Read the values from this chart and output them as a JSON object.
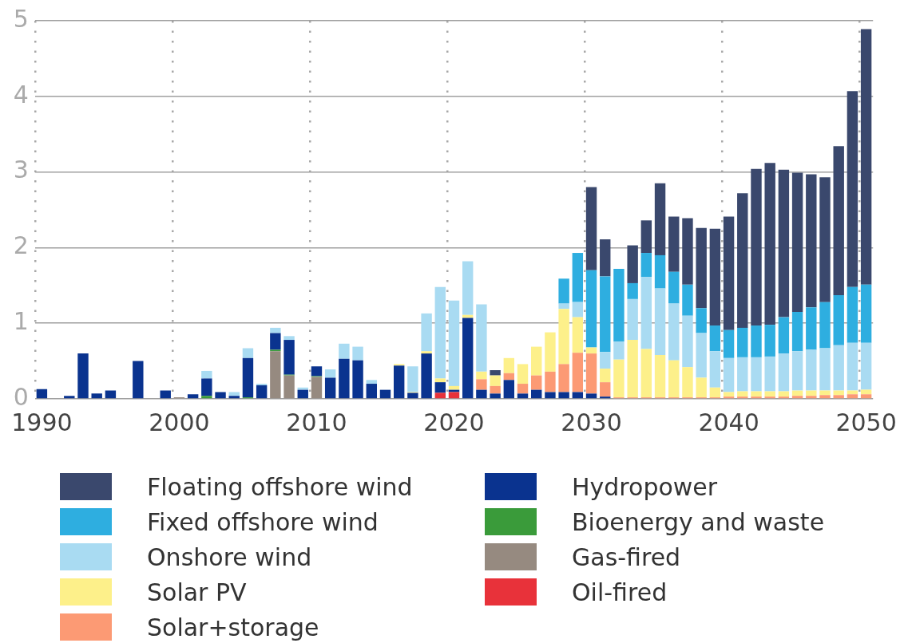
{
  "chart_data": {
    "type": "bar",
    "stacked": true,
    "grid": true,
    "legend": "bottom",
    "ylim": [
      0,
      5
    ],
    "yticks": [
      0,
      1,
      2,
      3,
      4,
      5
    ],
    "categories": [
      "1990",
      null,
      null,
      null,
      null,
      null,
      null,
      null,
      null,
      null,
      "2000",
      null,
      null,
      null,
      null,
      null,
      null,
      null,
      null,
      null,
      "2010",
      null,
      null,
      null,
      null,
      null,
      null,
      null,
      null,
      null,
      "2020",
      null,
      null,
      null,
      null,
      null,
      null,
      null,
      null,
      null,
      "2030",
      null,
      null,
      null,
      null,
      null,
      null,
      null,
      null,
      null,
      "2040",
      null,
      null,
      null,
      null,
      null,
      null,
      null,
      null,
      null,
      "2050"
    ],
    "series": [
      {
        "name": "Oil-fired",
        "color": "#e8323a",
        "values": [
          null,
          null,
          null,
          null,
          null,
          null,
          null,
          null,
          null,
          null,
          null,
          null,
          null,
          null,
          null,
          null,
          null,
          null,
          null,
          null,
          null,
          null,
          null,
          null,
          null,
          null,
          null,
          null,
          null,
          0.08,
          0.09,
          null,
          null,
          null,
          null,
          null,
          null,
          null,
          null,
          null,
          null,
          null,
          null,
          null,
          null,
          null,
          null,
          null,
          null,
          null,
          null,
          null,
          null,
          null,
          null,
          null,
          null,
          null,
          null,
          null,
          null
        ]
      },
      {
        "name": "Gas-fired",
        "color": "#968a80",
        "values": [
          null,
          null,
          null,
          null,
          null,
          null,
          null,
          null,
          null,
          null,
          0.02,
          null,
          null,
          null,
          null,
          null,
          null,
          0.63,
          0.31,
          null,
          0.29,
          null,
          null,
          null,
          null,
          null,
          null,
          null,
          null,
          null,
          null,
          null,
          null,
          null,
          null,
          null,
          null,
          null,
          null,
          null,
          null,
          null,
          null,
          null,
          null,
          null,
          null,
          null,
          null,
          null,
          null,
          null,
          null,
          null,
          null,
          null,
          null,
          null,
          null,
          null,
          null
        ]
      },
      {
        "name": "Bioenergy and waste",
        "color": "#3a9b3a",
        "values": [
          null,
          null,
          null,
          null,
          null,
          null,
          null,
          null,
          null,
          null,
          null,
          null,
          0.04,
          null,
          null,
          0.02,
          null,
          0.02,
          0.01,
          null,
          0.01,
          null,
          null,
          null,
          null,
          null,
          null,
          null,
          null,
          null,
          null,
          null,
          null,
          null,
          null,
          null,
          null,
          null,
          null,
          null,
          null,
          null,
          null,
          null,
          null,
          null,
          null,
          null,
          null,
          null,
          null,
          null,
          null,
          null,
          null,
          null,
          null,
          null,
          null,
          null,
          null
        ]
      },
      {
        "name": "Hydropower",
        "color": "#0a338f",
        "values": [
          0.13,
          null,
          0.04,
          0.6,
          0.07,
          0.11,
          null,
          0.5,
          null,
          0.11,
          null,
          0.06,
          0.23,
          0.09,
          0.04,
          0.52,
          0.18,
          0.22,
          0.46,
          0.12,
          0.13,
          0.28,
          0.53,
          0.51,
          0.2,
          0.12,
          0.44,
          0.08,
          0.6,
          0.14,
          0.03,
          1.07,
          0.12,
          0.07,
          0.25,
          0.07,
          0.12,
          0.09,
          0.09,
          0.09,
          0.07,
          0.03,
          null,
          null,
          null,
          null,
          null,
          null,
          null,
          null,
          null,
          null,
          null,
          null,
          null,
          null,
          null,
          null,
          null,
          null,
          null
        ]
      },
      {
        "name": "Solar+storage",
        "color": "#fc9a74",
        "values": [
          null,
          null,
          null,
          null,
          null,
          null,
          null,
          null,
          null,
          null,
          null,
          null,
          null,
          null,
          null,
          null,
          null,
          null,
          null,
          null,
          null,
          null,
          null,
          null,
          null,
          null,
          null,
          null,
          null,
          null,
          null,
          null,
          0.14,
          0.1,
          0.09,
          0.13,
          0.19,
          0.27,
          0.37,
          0.52,
          0.53,
          0.19,
          0.02,
          0.02,
          0.02,
          0.02,
          0.02,
          0.02,
          0.02,
          0.02,
          0.03,
          0.03,
          0.03,
          0.03,
          0.03,
          0.04,
          0.04,
          0.05,
          0.05,
          0.06,
          0.06
        ]
      },
      {
        "name": "Solar PV",
        "color": "#fdf08a",
        "values": [
          null,
          null,
          null,
          null,
          null,
          null,
          null,
          null,
          null,
          null,
          null,
          null,
          null,
          null,
          null,
          null,
          null,
          null,
          null,
          null,
          null,
          null,
          null,
          null,
          null,
          null,
          0.02,
          0.01,
          0.03,
          0.05,
          0.05,
          0.04,
          0.1,
          0.14,
          0.2,
          0.26,
          0.38,
          0.52,
          0.73,
          0.47,
          0.08,
          0.18,
          0.5,
          0.76,
          0.64,
          0.56,
          0.49,
          0.4,
          0.26,
          0.13,
          0.06,
          0.07,
          0.07,
          0.07,
          0.07,
          0.07,
          0.07,
          0.06,
          0.06,
          0.05,
          0.06
        ]
      },
      {
        "name": "Onshore wind",
        "color": "#a9dbf2",
        "values": [
          null,
          null,
          null,
          null,
          null,
          null,
          null,
          null,
          null,
          null,
          null,
          null,
          0.1,
          null,
          0.05,
          0.13,
          0.02,
          0.07,
          0.05,
          0.03,
          null,
          0.11,
          0.2,
          0.18,
          0.05,
          null,
          null,
          0.34,
          0.5,
          1.21,
          1.13,
          0.71,
          0.89,
          null,
          null,
          null,
          null,
          null,
          0.07,
          0.2,
          null,
          0.22,
          0.24,
          0.54,
          0.95,
          0.88,
          0.75,
          0.68,
          0.59,
          0.48,
          0.45,
          0.45,
          0.45,
          0.46,
          0.5,
          0.52,
          0.54,
          0.56,
          0.6,
          0.63,
          0.62
        ]
      },
      {
        "name": "Fixed offshore wind",
        "color": "#2eaee0",
        "values": [
          null,
          null,
          null,
          null,
          null,
          null,
          null,
          null,
          null,
          null,
          null,
          null,
          null,
          null,
          null,
          null,
          null,
          null,
          null,
          null,
          null,
          null,
          null,
          null,
          null,
          null,
          null,
          null,
          null,
          null,
          null,
          null,
          null,
          null,
          null,
          null,
          null,
          null,
          0.33,
          0.65,
          1.02,
          1.0,
          0.96,
          0.21,
          0.32,
          0.44,
          0.42,
          0.41,
          0.33,
          0.34,
          0.37,
          0.39,
          0.42,
          0.42,
          0.48,
          0.52,
          0.56,
          0.61,
          0.66,
          0.74,
          0.77
        ]
      },
      {
        "name": "Floating offshore wind",
        "color": "#3a486d",
        "values": [
          null,
          null,
          null,
          null,
          null,
          null,
          null,
          null,
          null,
          null,
          null,
          null,
          null,
          null,
          null,
          null,
          null,
          null,
          null,
          null,
          null,
          null,
          null,
          null,
          null,
          null,
          null,
          null,
          null,
          null,
          null,
          null,
          null,
          0.07,
          null,
          null,
          null,
          null,
          null,
          null,
          1.1,
          0.49,
          null,
          0.5,
          0.43,
          0.95,
          0.73,
          0.88,
          1.06,
          1.28,
          1.5,
          1.78,
          2.07,
          2.14,
          1.95,
          1.84,
          1.76,
          1.65,
          1.97,
          2.59,
          3.38
        ]
      }
    ]
  }
}
